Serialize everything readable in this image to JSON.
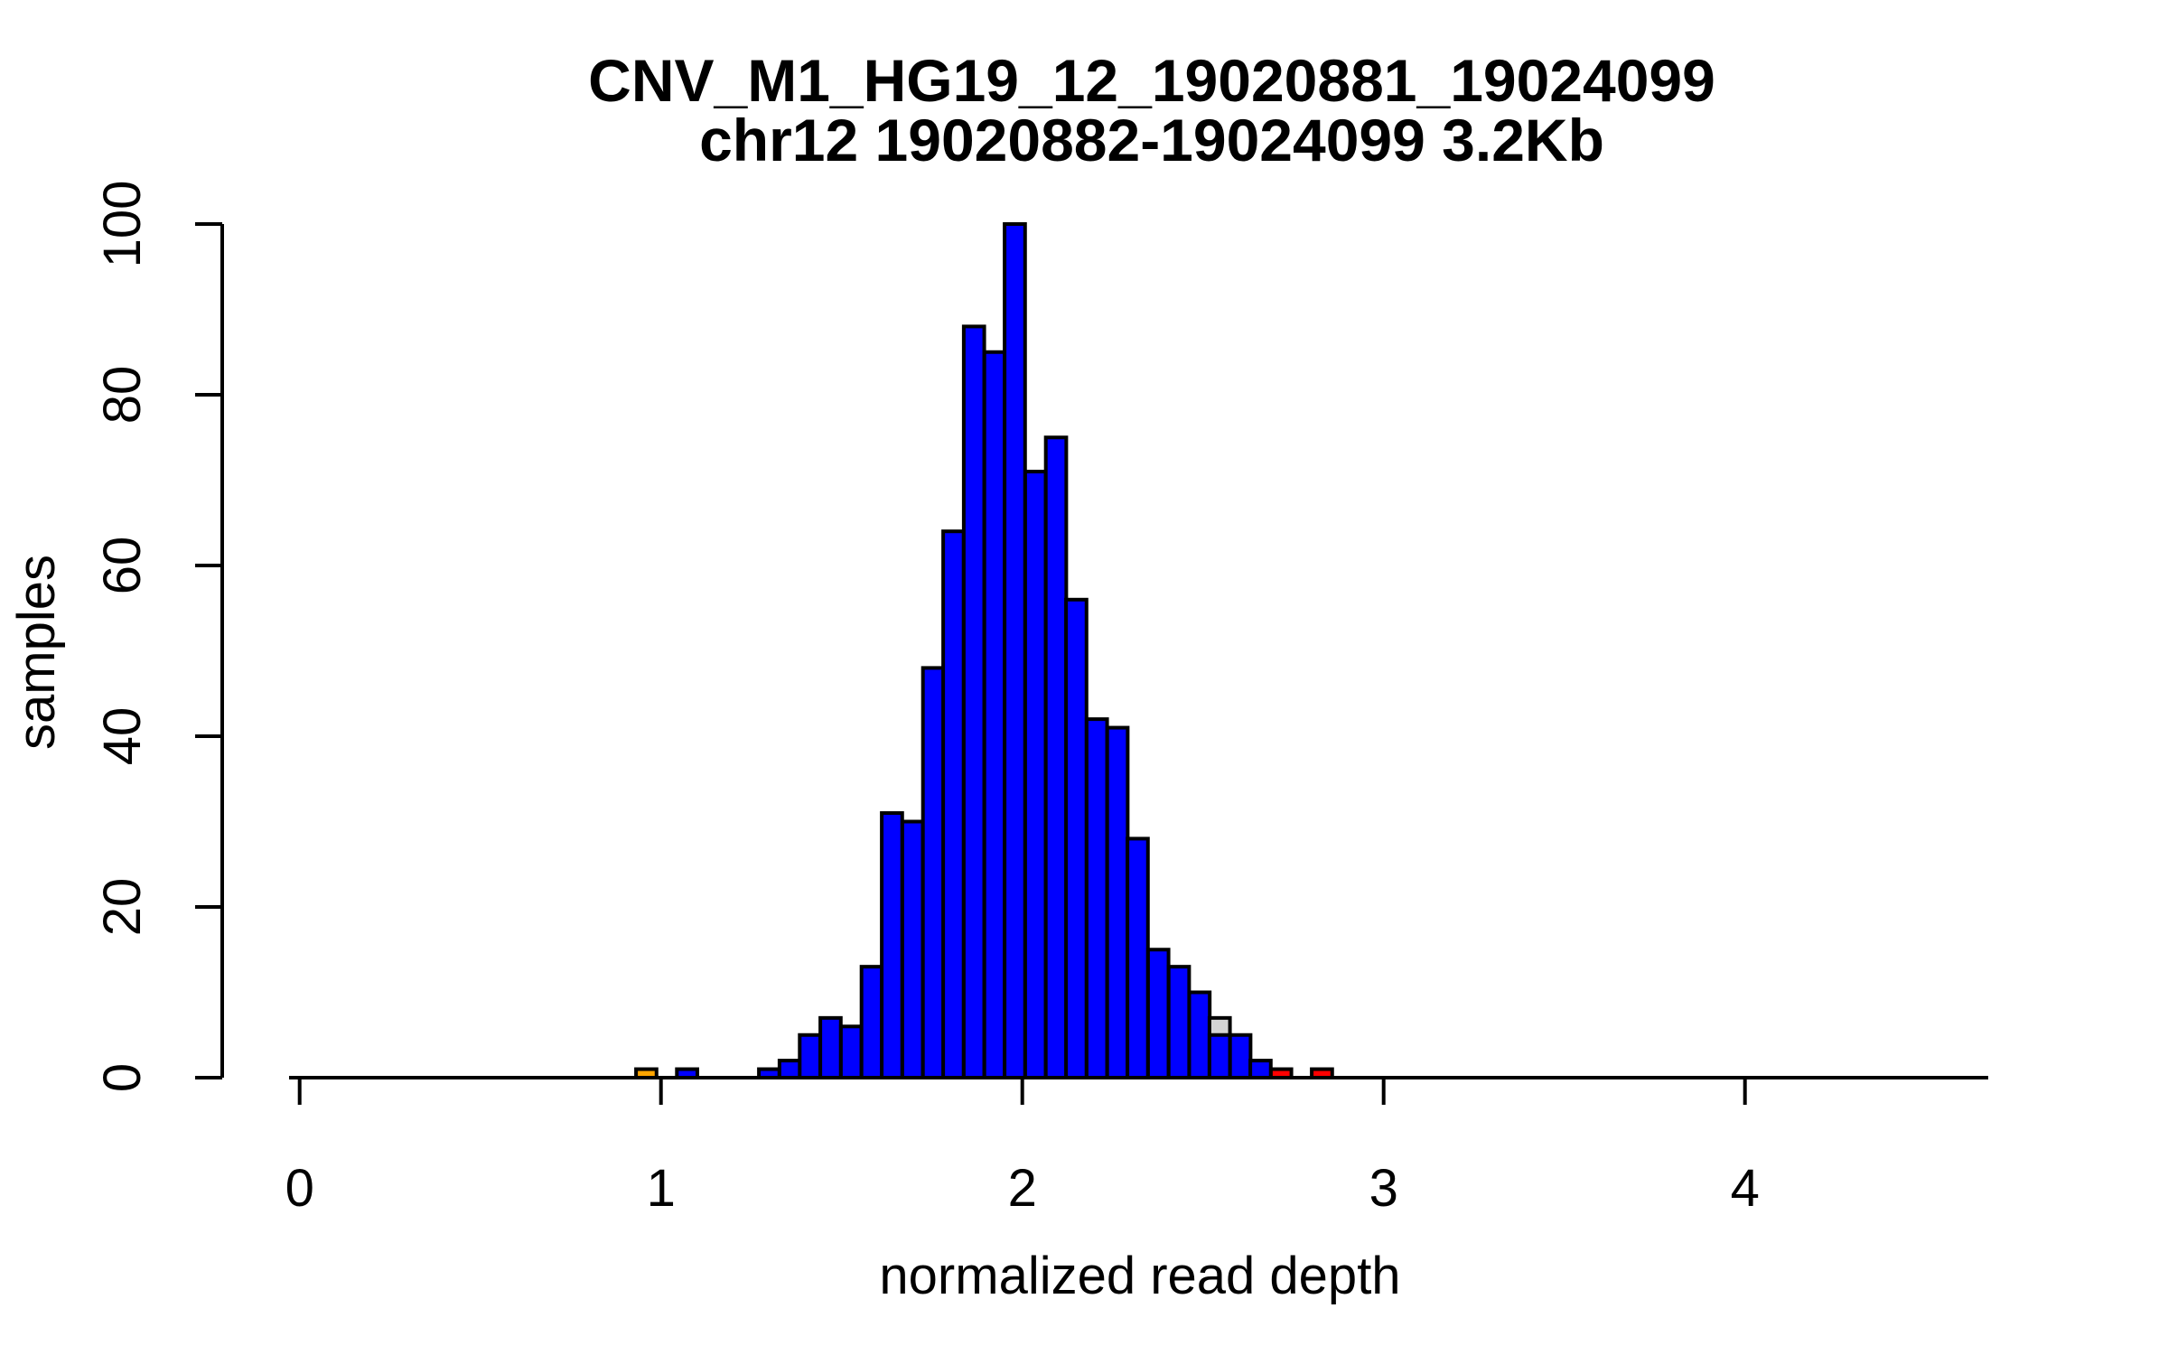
{
  "title": {
    "line1": "CNV_M1_HG19_12_19020881_19024099",
    "line2": "chr12 19020882-19024099 3.2Kb"
  },
  "colors": {
    "blue": "#0000FF",
    "orange": "#FFA500",
    "red": "#FF0000",
    "gray": "#D3D3D3",
    "axis": "#000000",
    "background": "#FFFFFF"
  },
  "chart_data": {
    "type": "bar",
    "subtype": "histogram",
    "title": "CNV_M1_HG19_12_19020881_19024099",
    "subtitle": "chr12 19020882-19024099 3.2Kb",
    "xlabel": "normalized read depth",
    "ylabel": "samples",
    "x_ticks": [
      0,
      1,
      2,
      3,
      4
    ],
    "y_ticks": [
      0,
      20,
      40,
      60,
      80,
      100
    ],
    "xlim": [
      -0.03,
      4.67
    ],
    "ylim": [
      0,
      100
    ],
    "grid": false,
    "legend": "none",
    "bin_width": 0.0567,
    "bars": [
      {
        "x": 0.931,
        "height": 1,
        "color": "orange"
      },
      {
        "x": 1.044,
        "height": 1,
        "color": "blue"
      },
      {
        "x": 1.271,
        "height": 1,
        "color": "blue"
      },
      {
        "x": 1.328,
        "height": 2,
        "color": "blue"
      },
      {
        "x": 1.384,
        "height": 5,
        "color": "blue"
      },
      {
        "x": 1.441,
        "height": 7,
        "color": "blue"
      },
      {
        "x": 1.498,
        "height": 6,
        "color": "blue"
      },
      {
        "x": 1.555,
        "height": 13,
        "color": "blue"
      },
      {
        "x": 1.611,
        "height": 31,
        "color": "blue"
      },
      {
        "x": 1.668,
        "height": 30,
        "color": "blue"
      },
      {
        "x": 1.725,
        "height": 48,
        "color": "blue"
      },
      {
        "x": 1.781,
        "height": 64,
        "color": "blue"
      },
      {
        "x": 1.838,
        "height": 88,
        "color": "blue"
      },
      {
        "x": 1.895,
        "height": 85,
        "color": "blue"
      },
      {
        "x": 1.951,
        "height": 100,
        "color": "blue"
      },
      {
        "x": 2.008,
        "height": 71,
        "color": "blue"
      },
      {
        "x": 2.065,
        "height": 75,
        "color": "blue"
      },
      {
        "x": 2.121,
        "height": 56,
        "color": "blue"
      },
      {
        "x": 2.178,
        "height": 42,
        "color": "blue"
      },
      {
        "x": 2.235,
        "height": 41,
        "color": "blue"
      },
      {
        "x": 2.291,
        "height": 28,
        "color": "blue"
      },
      {
        "x": 2.348,
        "height": 15,
        "color": "blue"
      },
      {
        "x": 2.405,
        "height": 13,
        "color": "blue"
      },
      {
        "x": 2.462,
        "height": 10,
        "color": "blue"
      },
      {
        "x": 2.518,
        "height": 7,
        "color": "gray"
      },
      {
        "x": 2.518,
        "height": 5,
        "color": "blue"
      },
      {
        "x": 2.575,
        "height": 5,
        "color": "blue"
      },
      {
        "x": 2.631,
        "height": 2,
        "color": "blue"
      },
      {
        "x": 2.688,
        "height": 1,
        "color": "red"
      },
      {
        "x": 2.801,
        "height": 1,
        "color": "red"
      }
    ]
  }
}
